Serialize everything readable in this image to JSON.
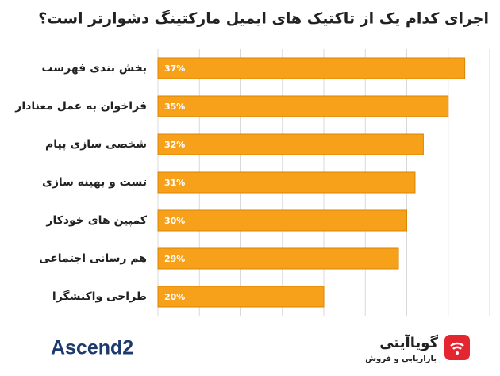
{
  "chart_data": {
    "type": "barh",
    "title": "اجرای کدام یک از تاکتیک های ایمیل مارکتینگ دشوارتر است؟",
    "categories": [
      "بخش بندی فهرست",
      "فراخوان به عمل معنادار",
      "شخصی سازی پیام",
      "تست و بهینه سازی",
      "کمپین های خودکار",
      "هم رسانی اجتماعی",
      "طراحی واکنشگرا"
    ],
    "values": [
      37,
      35,
      32,
      31,
      30,
      29,
      20
    ],
    "value_labels": [
      "37%",
      "35%",
      "32%",
      "31%",
      "30%",
      "29%",
      "20%"
    ],
    "color": "#f7a019",
    "xlim": [
      0,
      40
    ],
    "xticks": [
      0,
      5,
      10,
      15,
      20,
      25,
      30,
      35,
      40
    ],
    "grid": true
  },
  "logos": {
    "left": "Ascend2",
    "right": "گویاآیتی",
    "right_subtitle": "بازاریابی و فروش"
  }
}
